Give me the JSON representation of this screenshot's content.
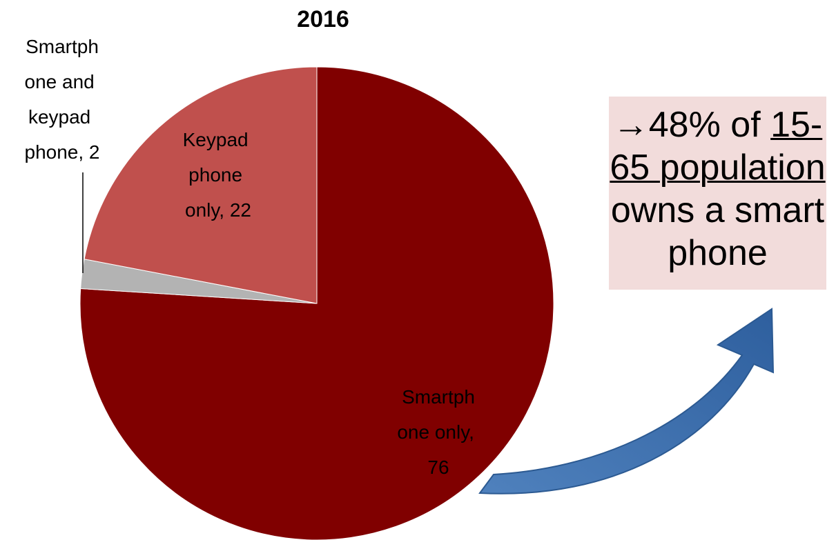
{
  "chart_data": {
    "type": "pie",
    "title": "2016",
    "values": [
      76,
      2,
      22
    ],
    "value_labels": [
      "Smartphone only, 76",
      "Smartphone and keypad phone, 2",
      "Keypad phone only, 22"
    ],
    "colors": [
      "#800000",
      "#b3b3b3",
      "#c0504d"
    ],
    "annotation": {
      "prefix": "→48% of ",
      "underlined": "15-65 population",
      "suffix": " owns a smartphone"
    }
  }
}
